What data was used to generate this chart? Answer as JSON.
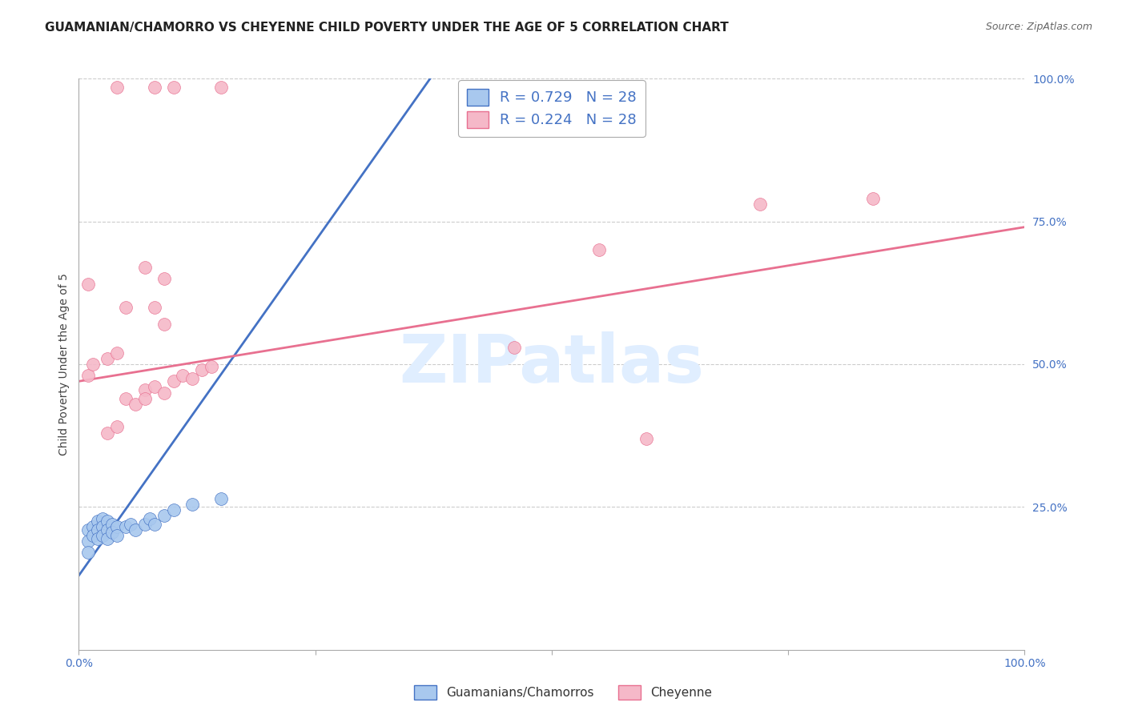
{
  "title": "GUAMANIAN/CHAMORRO VS CHEYENNE CHILD POVERTY UNDER THE AGE OF 5 CORRELATION CHART",
  "source": "Source: ZipAtlas.com",
  "ylabel": "Child Poverty Under the Age of 5",
  "xlim": [
    0,
    1
  ],
  "ylim": [
    0,
    1
  ],
  "R_blue": 0.729,
  "N_blue": 28,
  "R_pink": 0.224,
  "N_pink": 28,
  "legend_label_blue": "Guamanians/Chamorros",
  "legend_label_pink": "Cheyenne",
  "blue_color": "#A8C8EE",
  "pink_color": "#F5B8C8",
  "blue_line_color": "#4472C4",
  "pink_line_color": "#E87090",
  "accent_color": "#4472C4",
  "watermark_color": "#E0EEFF",
  "background_color": "#FFFFFF",
  "title_fontsize": 11,
  "blue_line": [
    [
      0.0,
      0.13
    ],
    [
      0.38,
      1.02
    ]
  ],
  "pink_line": [
    [
      0.0,
      0.47
    ],
    [
      1.0,
      0.74
    ]
  ],
  "blue_scatter": [
    [
      0.01,
      0.21
    ],
    [
      0.01,
      0.19
    ],
    [
      0.01,
      0.17
    ],
    [
      0.015,
      0.215
    ],
    [
      0.015,
      0.2
    ],
    [
      0.02,
      0.225
    ],
    [
      0.02,
      0.21
    ],
    [
      0.02,
      0.195
    ],
    [
      0.025,
      0.23
    ],
    [
      0.025,
      0.215
    ],
    [
      0.025,
      0.2
    ],
    [
      0.03,
      0.225
    ],
    [
      0.03,
      0.21
    ],
    [
      0.03,
      0.195
    ],
    [
      0.035,
      0.22
    ],
    [
      0.035,
      0.205
    ],
    [
      0.04,
      0.215
    ],
    [
      0.04,
      0.2
    ],
    [
      0.05,
      0.215
    ],
    [
      0.055,
      0.22
    ],
    [
      0.06,
      0.21
    ],
    [
      0.07,
      0.22
    ],
    [
      0.075,
      0.23
    ],
    [
      0.08,
      0.22
    ],
    [
      0.09,
      0.235
    ],
    [
      0.1,
      0.245
    ],
    [
      0.12,
      0.255
    ],
    [
      0.15,
      0.265
    ]
  ],
  "pink_scatter": [
    [
      0.01,
      0.48
    ],
    [
      0.015,
      0.5
    ],
    [
      0.03,
      0.38
    ],
    [
      0.04,
      0.39
    ],
    [
      0.05,
      0.44
    ],
    [
      0.06,
      0.43
    ],
    [
      0.07,
      0.455
    ],
    [
      0.07,
      0.44
    ],
    [
      0.08,
      0.46
    ],
    [
      0.09,
      0.45
    ],
    [
      0.1,
      0.47
    ],
    [
      0.11,
      0.48
    ],
    [
      0.12,
      0.475
    ],
    [
      0.13,
      0.49
    ],
    [
      0.14,
      0.495
    ],
    [
      0.05,
      0.6
    ],
    [
      0.08,
      0.6
    ],
    [
      0.09,
      0.57
    ],
    [
      0.01,
      0.64
    ],
    [
      0.55,
      0.7
    ],
    [
      0.72,
      0.78
    ],
    [
      0.84,
      0.79
    ],
    [
      0.6,
      0.37
    ],
    [
      0.46,
      0.53
    ],
    [
      0.03,
      0.51
    ],
    [
      0.04,
      0.52
    ],
    [
      0.07,
      0.67
    ],
    [
      0.09,
      0.65
    ]
  ],
  "pink_top_scatter": [
    [
      0.04,
      0.985
    ],
    [
      0.08,
      0.985
    ],
    [
      0.1,
      0.985
    ],
    [
      0.15,
      0.985
    ]
  ]
}
